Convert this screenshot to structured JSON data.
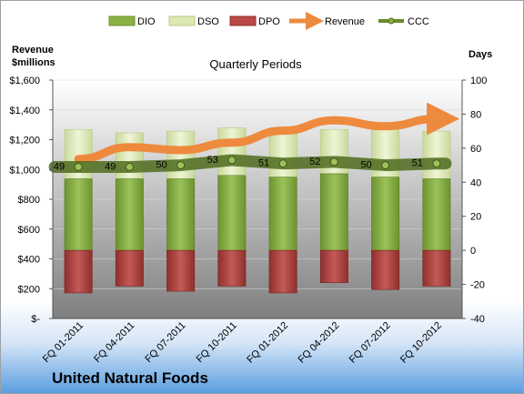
{
  "chart_data": {
    "type": "bar",
    "subtitle": "Quarterly Periods",
    "footer": "United Natural Foods",
    "left_axis_title": [
      "Revenue",
      "$millions"
    ],
    "right_axis_title": "Days",
    "categories": [
      "FQ 01-2011",
      "FQ 04-2011",
      "FQ 07-2011",
      "FQ 10-2011",
      "FQ 01-2012",
      "FQ 04-2012",
      "FQ 07-2012",
      "FQ 10-2012"
    ],
    "left_ticks": [
      "$-",
      "$200",
      "$400",
      "$600",
      "$800",
      "$1,000",
      "$1,200",
      "$1,400",
      "$1,600"
    ],
    "right_ticks": [
      "-40",
      "-20",
      "0",
      "20",
      "40",
      "60",
      "80",
      "100"
    ],
    "left_ylim": [
      0,
      1600
    ],
    "right_ylim": [
      -40,
      100
    ],
    "legend": [
      "DIO",
      "DSO",
      "DPO",
      "Revenue",
      "CCC"
    ],
    "series": [
      {
        "name": "DIO",
        "axis": "right",
        "values": [
          42,
          42,
          42,
          44,
          43,
          45,
          43,
          42
        ]
      },
      {
        "name": "DSO",
        "axis": "right",
        "values": [
          29,
          27,
          28,
          28,
          29,
          26,
          28,
          28
        ]
      },
      {
        "name": "DPO",
        "axis": "right",
        "values": [
          -25,
          -21,
          -24,
          -21,
          -25,
          -19,
          -23,
          -21
        ]
      },
      {
        "name": "CCC",
        "axis": "right",
        "values": [
          49,
          49,
          50,
          53,
          51,
          52,
          50,
          51
        ]
      },
      {
        "name": "Revenue",
        "axis": "left",
        "values": [
          1070,
          1150,
          1130,
          1180,
          1260,
          1330,
          1290,
          1340
        ]
      }
    ],
    "ccc_labels": [
      "49",
      "49",
      "50",
      "53",
      "51",
      "52",
      "50",
      "51"
    ],
    "colors": {
      "DIO": "#8bb043",
      "DSO": "#dce9b0",
      "DPO": "#b94a48",
      "Revenue": "#ee8a3e",
      "CCC": "#6b8a2a"
    }
  }
}
